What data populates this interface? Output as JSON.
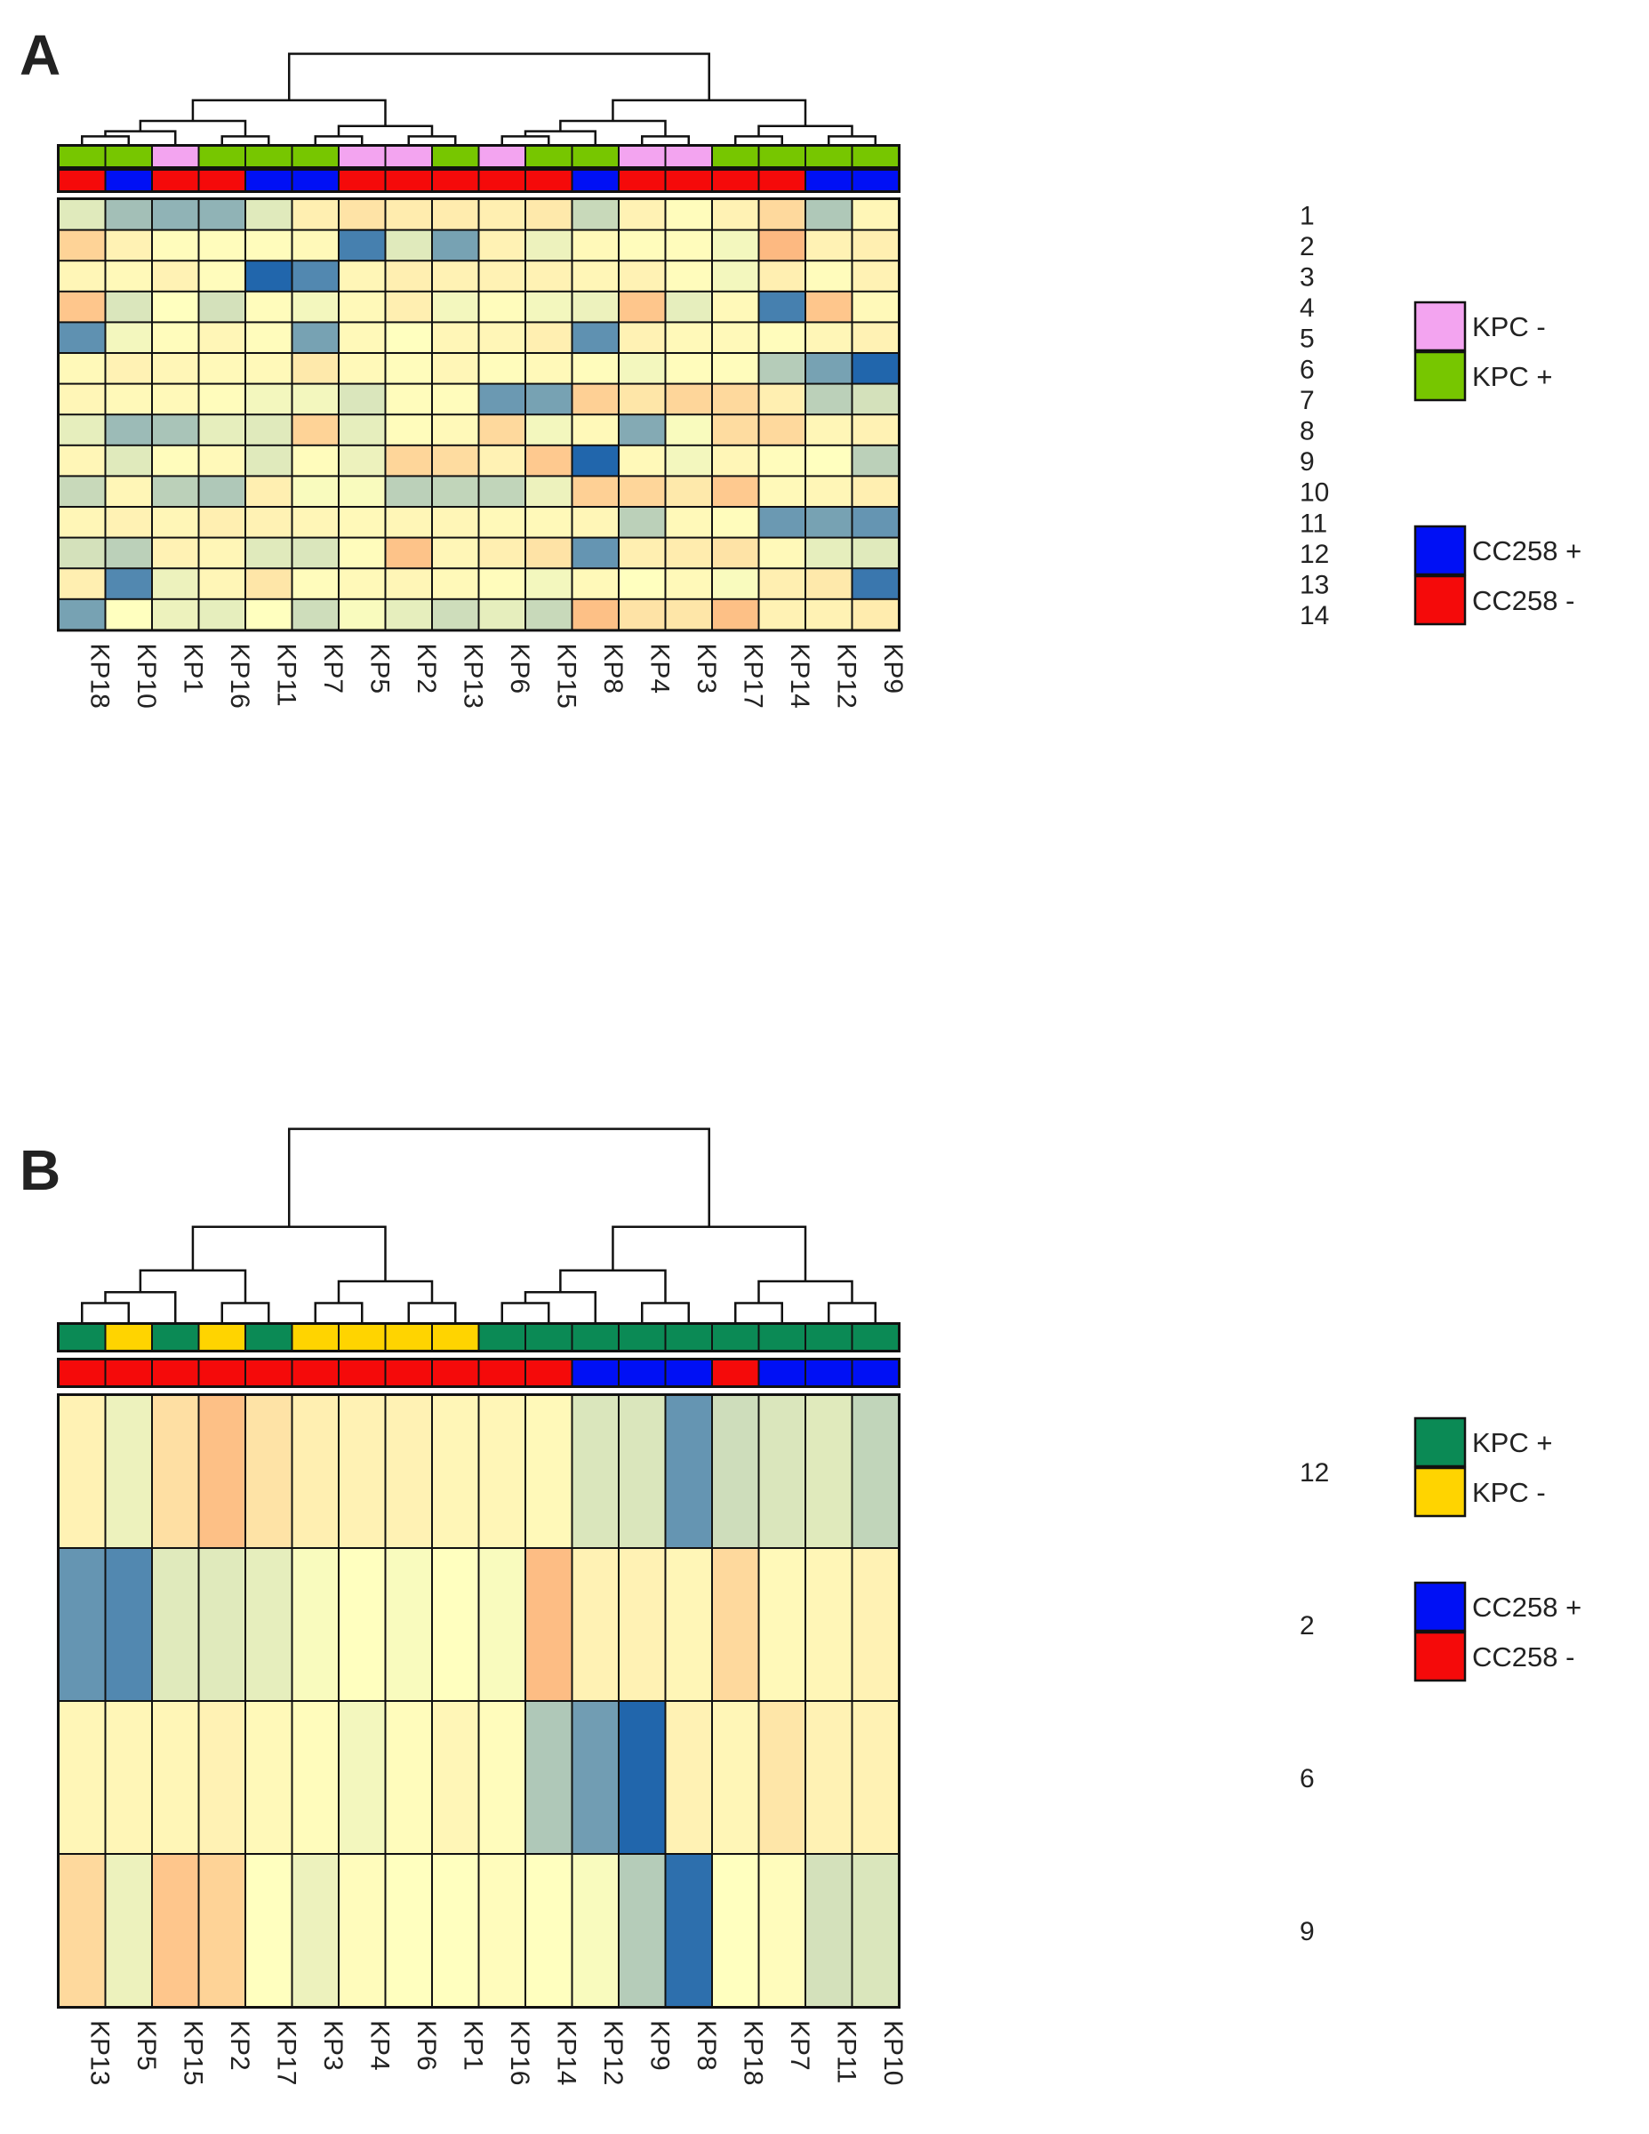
{
  "chart_data": [
    {
      "type": "heatmap",
      "panel_label": "A",
      "columns": [
        "KP18",
        "KP10",
        "KP1",
        "KP16",
        "KP11",
        "KP7",
        "KP5",
        "KP2",
        "KP13",
        "KP6",
        "KP15",
        "KP8",
        "KP4",
        "KP3",
        "KP17",
        "KP14",
        "KP12",
        "KP9"
      ],
      "rows": [
        "1",
        "2",
        "3",
        "4",
        "5",
        "6",
        "7",
        "8",
        "9",
        "10",
        "11",
        "12",
        "13",
        "14"
      ],
      "values": [
        [
          0.5,
          1.5,
          1.8,
          1.8,
          0.5,
          -0.5,
          -0.9,
          -0.6,
          -0.6,
          -0.5,
          -0.7,
          0.9,
          -0.4,
          -0.1,
          -0.4,
          -1.2,
          1.3,
          -0.3
        ],
        [
          -1.4,
          -0.4,
          -0.1,
          -0.1,
          -0.1,
          -0.2,
          3.0,
          0.5,
          2.2,
          -0.4,
          0.3,
          -0.2,
          -0.1,
          -0.1,
          0.2,
          -2.2,
          -0.4,
          -0.5
        ],
        [
          -0.3,
          -0.2,
          -0.4,
          -0.1,
          3.6,
          2.8,
          -0.3,
          -0.5,
          -0.4,
          -0.4,
          -0.4,
          -0.3,
          -0.4,
          -0.1,
          0.2,
          -0.5,
          -0.1,
          -0.4
        ],
        [
          -1.8,
          0.6,
          0.0,
          0.7,
          -0.1,
          0.2,
          -0.2,
          -0.5,
          0.2,
          -0.1,
          0.2,
          0.3,
          -1.8,
          0.4,
          -0.2,
          3.0,
          -1.8,
          -0.2
        ],
        [
          2.6,
          0.2,
          -0.1,
          -0.3,
          -0.1,
          2.2,
          -0.2,
          0.0,
          -0.3,
          -0.3,
          -0.5,
          2.6,
          -0.4,
          -0.2,
          -0.2,
          -0.1,
          -0.3,
          -0.4
        ],
        [
          -0.2,
          -0.4,
          -0.3,
          -0.2,
          -0.2,
          -0.7,
          -0.2,
          -0.1,
          -0.3,
          -0.1,
          -0.2,
          -0.1,
          0.2,
          -0.1,
          -0.1,
          1.2,
          2.2,
          3.6
        ],
        [
          -0.3,
          -0.2,
          -0.2,
          -0.1,
          0.2,
          0.2,
          0.6,
          -0.1,
          -0.1,
          2.4,
          2.2,
          -1.5,
          -0.8,
          -1.3,
          -1.2,
          -0.5,
          1.1,
          0.7
        ],
        [
          0.4,
          1.6,
          1.4,
          0.4,
          0.5,
          -1.4,
          0.4,
          -0.1,
          -0.2,
          -1.2,
          0.2,
          -0.2,
          2.0,
          0.1,
          -1.1,
          -1.2,
          -0.3,
          -0.4
        ],
        [
          -0.3,
          0.5,
          -0.1,
          -0.2,
          0.5,
          -0.1,
          0.3,
          -1.3,
          -1.1,
          -0.4,
          -1.7,
          3.6,
          -0.2,
          0.2,
          -0.3,
          -0.1,
          0.0,
          1.1
        ],
        [
          0.9,
          -0.3,
          1.1,
          1.3,
          -0.5,
          0.1,
          0.1,
          1.1,
          1.0,
          1.0,
          0.3,
          -1.5,
          -1.3,
          -0.7,
          -1.7,
          -0.2,
          -0.3,
          -0.5
        ],
        [
          -0.3,
          -0.4,
          -0.3,
          -0.5,
          -0.4,
          -0.3,
          -0.2,
          -0.3,
          -0.3,
          -0.2,
          -0.2,
          -0.3,
          1.1,
          -0.2,
          -0.1,
          2.4,
          2.2,
          2.5
        ],
        [
          0.7,
          1.1,
          -0.4,
          -0.3,
          0.5,
          0.6,
          -0.1,
          -1.9,
          -0.3,
          -0.5,
          -0.9,
          2.5,
          -0.5,
          -0.6,
          -0.9,
          -0.2,
          0.4,
          0.5
        ],
        [
          -0.5,
          2.8,
          0.3,
          -0.3,
          -0.8,
          -0.1,
          -0.2,
          -0.3,
          -0.2,
          -0.1,
          0.2,
          -0.2,
          0.0,
          -0.2,
          0.1,
          -0.5,
          -0.7,
          3.2
        ],
        [
          2.2,
          0.0,
          0.3,
          0.4,
          0.0,
          0.8,
          0.1,
          0.4,
          0.8,
          0.4,
          0.9,
          -2.0,
          -0.9,
          -0.8,
          -2.0,
          -0.4,
          -0.4,
          -0.6
        ]
      ],
      "annotation_kpc": [
        "+",
        "+",
        "-",
        "+",
        "+",
        "+",
        "-",
        "-",
        "+",
        "-",
        "+",
        "+",
        "-",
        "-",
        "+",
        "+",
        "+",
        "+"
      ],
      "annotation_cc258": [
        "-",
        "+",
        "-",
        "-",
        "+",
        "+",
        "-",
        "-",
        "-",
        "-",
        "-",
        "+",
        "-",
        "-",
        "-",
        "-",
        "+",
        "+"
      ],
      "legend": [
        {
          "label": "KPC -",
          "color": "#f3a4f0"
        },
        {
          "label": "KPC +",
          "color": "#77c600"
        },
        {
          "label": "CC258 +",
          "color": "#0010f5"
        },
        {
          "label": "CC258 -",
          "color": "#f50a0a"
        }
      ],
      "dendrogram": "hierarchical clustering of columns"
    },
    {
      "type": "heatmap",
      "panel_label": "B",
      "columns": [
        "KP13",
        "KP5",
        "KP15",
        "KP2",
        "KP17",
        "KP3",
        "KP4",
        "KP6",
        "KP1",
        "KP16",
        "KP14",
        "KP12",
        "KP9",
        "KP8",
        "KP18",
        "KP7",
        "KP11",
        "KP10"
      ],
      "rows": [
        "12",
        "2",
        "6",
        "9"
      ],
      "values": [
        [
          -0.4,
          0.3,
          -1.0,
          -2.0,
          -0.9,
          -0.5,
          -0.4,
          -0.4,
          -0.3,
          -0.3,
          -0.2,
          0.6,
          0.6,
          2.5,
          0.8,
          0.6,
          0.5,
          1.0
        ],
        [
          2.5,
          2.8,
          0.5,
          0.5,
          0.4,
          0.1,
          0.0,
          0.1,
          0.0,
          0.1,
          -2.1,
          -0.4,
          -0.4,
          -0.3,
          -1.2,
          -0.2,
          -0.3,
          -0.4
        ],
        [
          -0.3,
          -0.3,
          -0.3,
          -0.4,
          -0.2,
          -0.1,
          0.2,
          -0.1,
          -0.3,
          -0.1,
          1.3,
          2.3,
          3.6,
          -0.4,
          -0.3,
          -0.8,
          -0.4,
          -0.4
        ],
        [
          -1.2,
          0.3,
          -1.8,
          -1.4,
          0.0,
          0.3,
          -0.1,
          0.0,
          0.0,
          -0.1,
          0.0,
          0.1,
          1.2,
          3.4,
          0.0,
          -0.1,
          0.7,
          0.6
        ]
      ],
      "annotation_kpc": [
        "+",
        "-",
        "+",
        "-",
        "+",
        "-",
        "-",
        "-",
        "-",
        "+",
        "+",
        "+",
        "+",
        "+",
        "+",
        "+",
        "+",
        "+"
      ],
      "annotation_cc258": [
        "-",
        "-",
        "-",
        "-",
        "-",
        "-",
        "-",
        "-",
        "-",
        "-",
        "-",
        "+",
        "+",
        "+",
        "-",
        "+",
        "+",
        "+"
      ],
      "legend": [
        {
          "label": "KPC +",
          "color": "#0b8a55"
        },
        {
          "label": "KPC -",
          "color": "#ffd400"
        },
        {
          "label": "CC258 +",
          "color": "#0010f5"
        },
        {
          "label": "CC258 -",
          "color": "#f50a0a"
        }
      ],
      "dendrogram": "hierarchical clustering of columns"
    }
  ],
  "colors": {
    "scale_low": "#fc8d59",
    "scale_mid": "#ffffbf",
    "scale_high": "#2166ac",
    "cell_border": "#111111"
  }
}
